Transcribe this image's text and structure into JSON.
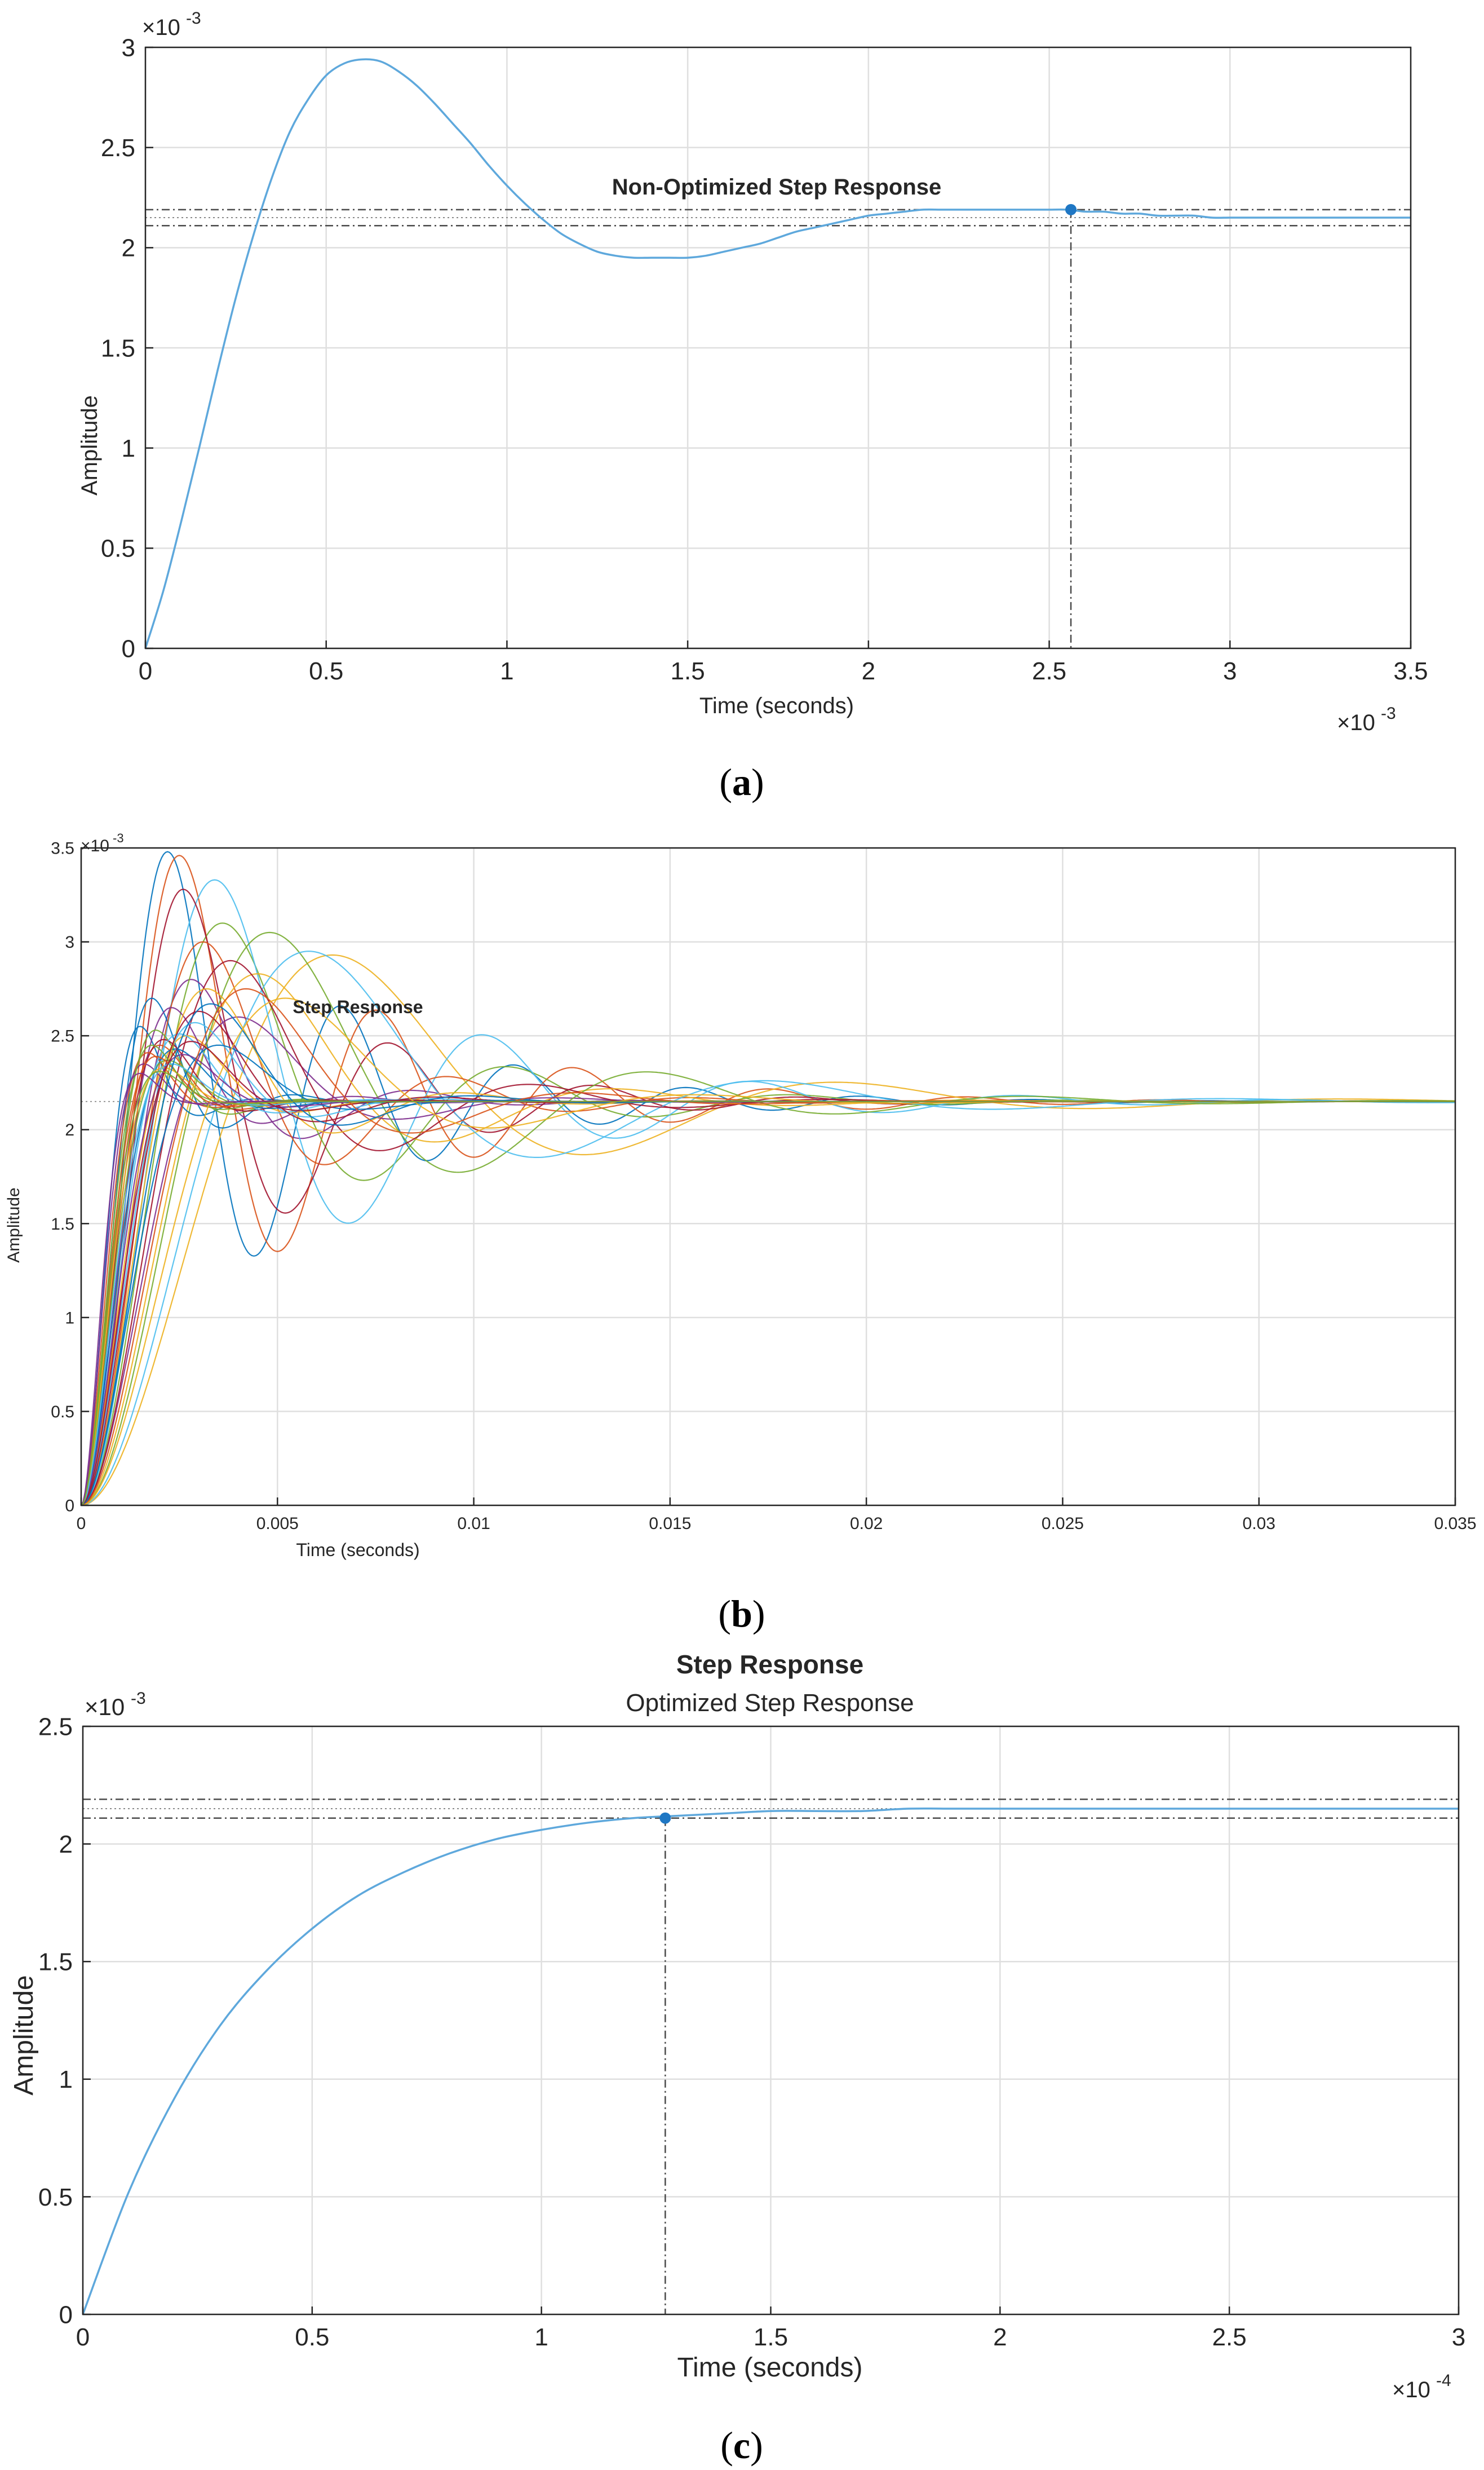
{
  "figure": {
    "panels": [
      {
        "caption": "(a)",
        "caption_letter": "a"
      },
      {
        "caption": "(b)",
        "caption_letter": "b"
      },
      {
        "caption": "(c)",
        "caption_letter": "c"
      }
    ]
  },
  "chart_data": [
    {
      "type": "line",
      "panel": "a",
      "title": "",
      "annotation": "Non-Optimized Step Response",
      "xlabel": "Time (seconds)",
      "ylabel": "Amplitude",
      "x_exponent_label": "×10^-3",
      "y_exponent_label": "×10^-3",
      "xlim": [
        0,
        0.0035
      ],
      "ylim": [
        0,
        0.003
      ],
      "xticks": [
        0,
        0.0005,
        0.001,
        0.0015,
        0.002,
        0.0025,
        0.003,
        0.0035
      ],
      "xtick_labels": [
        "0",
        "0.5",
        "1",
        "1.5",
        "2",
        "2.5",
        "3",
        "3.5"
      ],
      "yticks": [
        0,
        0.0005,
        0.001,
        0.0015,
        0.002,
        0.0025,
        0.003
      ],
      "ytick_labels": [
        "0",
        "0.5",
        "1",
        "1.5",
        "2",
        "2.5",
        "3"
      ],
      "grid": true,
      "series": [
        {
          "color": "#5ea8dc",
          "x": [
            0,
            5e-05,
            0.0001,
            0.00015,
            0.0002,
            0.00025,
            0.0003,
            0.00035,
            0.0004,
            0.00045,
            0.0005,
            0.00055,
            0.0006,
            0.00065,
            0.0007,
            0.00075,
            0.0008,
            0.00085,
            0.0009,
            0.00095,
            0.001,
            0.00105,
            0.0011,
            0.00115,
            0.0012,
            0.00125,
            0.0013,
            0.00135,
            0.0014,
            0.00145,
            0.0015,
            0.00155,
            0.0016,
            0.00165,
            0.0017,
            0.00175,
            0.0018,
            0.00185,
            0.0019,
            0.00195,
            0.002,
            0.00205,
            0.0021,
            0.00215,
            0.0022,
            0.00225,
            0.0023,
            0.00235,
            0.0024,
            0.00245,
            0.0025,
            0.00255,
            0.0026,
            0.00265,
            0.0027,
            0.00275,
            0.0028,
            0.00285,
            0.0029,
            0.00295,
            0.003,
            0.00305,
            0.0031,
            0.00315,
            0.0032,
            0.00325,
            0.0033,
            0.00335,
            0.0034,
            0.00345,
            0.0035
          ],
          "y": [
            0,
            0.00029,
            0.00064,
            0.00101,
            0.00139,
            0.00175,
            0.00207,
            0.00235,
            0.00258,
            0.00274,
            0.00286,
            0.00292,
            0.00294,
            0.00293,
            0.00288,
            0.00281,
            0.00272,
            0.00262,
            0.00252,
            0.00241,
            0.00231,
            0.00222,
            0.00214,
            0.00207,
            0.00202,
            0.00198,
            0.00196,
            0.00195,
            0.00195,
            0.00195,
            0.00195,
            0.00196,
            0.00198,
            0.002,
            0.00202,
            0.00205,
            0.00208,
            0.0021,
            0.00212,
            0.00214,
            0.00216,
            0.00217,
            0.00218,
            0.00219,
            0.00219,
            0.00219,
            0.00219,
            0.00219,
            0.00219,
            0.00219,
            0.00219,
            0.00219,
            0.00218,
            0.00218,
            0.00217,
            0.00217,
            0.00216,
            0.00216,
            0.00216,
            0.00215,
            0.00215,
            0.00215,
            0.00215,
            0.00215,
            0.00215,
            0.00215,
            0.00215,
            0.00215,
            0.00215,
            0.00215,
            0.00215
          ]
        }
      ],
      "reference_lines": {
        "upper_band": 0.00219,
        "lower_band": 0.00211,
        "final_value": 0.00215,
        "marker": {
          "x": 0.00256,
          "y": 0.00219
        }
      }
    },
    {
      "type": "line",
      "panel": "b",
      "title": "",
      "annotation": "Step Response",
      "xlabel": "Time (seconds)",
      "ylabel": "Amplitude",
      "y_exponent_label": "×10^-3",
      "xlim": [
        0,
        0.035
      ],
      "ylim": [
        0,
        0.0035
      ],
      "xticks": [
        0,
        0.005,
        0.01,
        0.015,
        0.02,
        0.025,
        0.03,
        0.035
      ],
      "xtick_labels": [
        "0",
        "0.005",
        "0.01",
        "0.015",
        "0.02",
        "0.025",
        "0.03",
        "0.035"
      ],
      "yticks": [
        0,
        0.0005,
        0.001,
        0.0015,
        0.002,
        0.0025,
        0.003,
        0.0035
      ],
      "ytick_labels": [
        "0",
        "0.5",
        "1",
        "1.5",
        "2",
        "2.5",
        "3",
        "3.5"
      ],
      "grid": true,
      "final_value": 0.00215,
      "series_model": "damped second-order step responses",
      "series_params": [
        {
          "color": "#0072bd",
          "tpeak": 0.0022,
          "overshoot": 0.00133,
          "decay": 2.9
        },
        {
          "color": "#d95319",
          "tpeak": 0.0025,
          "overshoot": 0.00131,
          "decay": 3.2
        },
        {
          "color": "#edb120",
          "tpeak": 0.0064,
          "overshoot": 0.00078,
          "decay": 0.8
        },
        {
          "color": "#7e2f8e",
          "tpeak": 0.0028,
          "overshoot": 0.00065,
          "decay": 1.6
        },
        {
          "color": "#77ac30",
          "tpeak": 0.0036,
          "overshoot": 0.00095,
          "decay": 1.4
        },
        {
          "color": "#4dbeee",
          "tpeak": 0.0034,
          "overshoot": 0.00118,
          "decay": 1.7
        },
        {
          "color": "#a2142f",
          "tpeak": 0.0026,
          "overshoot": 0.00113,
          "decay": 3.0
        },
        {
          "color": "#0072bd",
          "tpeak": 0.0018,
          "overshoot": 0.00055,
          "decay": 2.4
        },
        {
          "color": "#d95319",
          "tpeak": 0.0031,
          "overshoot": 0.00085,
          "decay": 1.9
        },
        {
          "color": "#edb120",
          "tpeak": 0.0045,
          "overshoot": 0.00068,
          "decay": 1.2
        },
        {
          "color": "#7e2f8e",
          "tpeak": 0.004,
          "overshoot": 0.00045,
          "decay": 1.5
        },
        {
          "color": "#77ac30",
          "tpeak": 0.0048,
          "overshoot": 0.0009,
          "decay": 1.1
        },
        {
          "color": "#4dbeee",
          "tpeak": 0.0058,
          "overshoot": 0.0008,
          "decay": 0.9
        },
        {
          "color": "#a2142f",
          "tpeak": 0.0038,
          "overshoot": 0.00075,
          "decay": 1.6
        },
        {
          "color": "#0072bd",
          "tpeak": 0.0015,
          "overshoot": 0.0004,
          "decay": 2.6
        },
        {
          "color": "#d95319",
          "tpeak": 0.002,
          "overshoot": 0.0003,
          "decay": 2.2
        },
        {
          "color": "#edb120",
          "tpeak": 0.0027,
          "overshoot": 0.00035,
          "decay": 2.0
        },
        {
          "color": "#7e2f8e",
          "tpeak": 0.0023,
          "overshoot": 0.0005,
          "decay": 2.1
        },
        {
          "color": "#77ac30",
          "tpeak": 0.0019,
          "overshoot": 0.00038,
          "decay": 2.8
        },
        {
          "color": "#4dbeee",
          "tpeak": 0.0029,
          "overshoot": 0.00042,
          "decay": 2.0
        },
        {
          "color": "#a2142f",
          "tpeak": 0.0021,
          "overshoot": 0.00033,
          "decay": 2.5
        },
        {
          "color": "#0072bd",
          "tpeak": 0.0024,
          "overshoot": 0.00028,
          "decay": 2.7
        },
        {
          "color": "#d95319",
          "tpeak": 0.0017,
          "overshoot": 0.00026,
          "decay": 3.0
        },
        {
          "color": "#edb120",
          "tpeak": 0.0032,
          "overshoot": 0.0006,
          "decay": 1.4
        },
        {
          "color": "#7e2f8e",
          "tpeak": 0.0016,
          "overshoot": 0.0002,
          "decay": 3.2
        },
        {
          "color": "#77ac30",
          "tpeak": 0.0022,
          "overshoot": 0.00022,
          "decay": 2.9
        },
        {
          "color": "#4dbeee",
          "tpeak": 0.0025,
          "overshoot": 0.00036,
          "decay": 2.3
        },
        {
          "color": "#a2142f",
          "tpeak": 0.003,
          "overshoot": 0.00048,
          "decay": 1.8
        },
        {
          "color": "#0072bd",
          "tpeak": 0.0035,
          "overshoot": 0.0003,
          "decay": 1.7
        },
        {
          "color": "#d95319",
          "tpeak": 0.0019,
          "overshoot": 0.00024,
          "decay": 2.6
        },
        {
          "color": "#edb120",
          "tpeak": 0.0021,
          "overshoot": 0.00018,
          "decay": 3.1
        },
        {
          "color": "#7e2f8e",
          "tpeak": 0.0026,
          "overshoot": 0.00025,
          "decay": 2.4
        },
        {
          "color": "#77ac30",
          "tpeak": 0.0018,
          "overshoot": 0.0003,
          "decay": 2.7
        },
        {
          "color": "#4dbeee",
          "tpeak": 0.0023,
          "overshoot": 0.0002,
          "decay": 2.8
        },
        {
          "color": "#a2142f",
          "tpeak": 0.0028,
          "overshoot": 0.00032,
          "decay": 2.2
        },
        {
          "color": "#0072bd",
          "tpeak": 0.0033,
          "overshoot": 0.00052,
          "decay": 1.5
        },
        {
          "color": "#d95319",
          "tpeak": 0.0042,
          "overshoot": 0.0006,
          "decay": 1.3
        },
        {
          "color": "#edb120",
          "tpeak": 0.0052,
          "overshoot": 0.00055,
          "decay": 1.0
        },
        {
          "color": "#7e2f8e",
          "tpeak": 0.0015,
          "overshoot": 0.00015,
          "decay": 3.4
        },
        {
          "color": "#77ac30",
          "tpeak": 0.002,
          "overshoot": 0.00016,
          "decay": 3.0
        }
      ]
    },
    {
      "type": "line",
      "panel": "c",
      "title": "Step Response",
      "subtitle": "Optimized Step Response",
      "xlabel": "Time (seconds)",
      "ylabel": "Amplitude",
      "x_exponent_label": "×10^-4",
      "y_exponent_label": "×10^-3",
      "xlim": [
        0,
        0.0003
      ],
      "ylim": [
        0,
        0.0025
      ],
      "xticks": [
        0,
        5e-05,
        0.0001,
        0.00015,
        0.0002,
        0.00025,
        0.0003
      ],
      "xtick_labels": [
        "0",
        "0.5",
        "1",
        "1.5",
        "2",
        "2.5",
        "3"
      ],
      "yticks": [
        0,
        0.0005,
        0.001,
        0.0015,
        0.002,
        0.0025
      ],
      "ytick_labels": [
        "0",
        "0.5",
        "1",
        "1.5",
        "2",
        "2.5"
      ],
      "grid": true,
      "series": [
        {
          "color": "#5ea8dc",
          "x": [
            0,
            1e-05,
            2e-05,
            3e-05,
            4e-05,
            5e-05,
            6e-05,
            7e-05,
            8e-05,
            9e-05,
            0.0001,
            0.00011,
            0.00012,
            0.00013,
            0.00014,
            0.00015,
            0.00016,
            0.00017,
            0.00018,
            0.00019,
            0.0002,
            0.00021,
            0.00022,
            0.00023,
            0.00024,
            0.00025,
            0.00026,
            0.00027,
            0.00028,
            0.00029,
            0.0003
          ],
          "y": [
            0,
            0.00052,
            0.00092,
            0.00123,
            0.00146,
            0.00164,
            0.00178,
            0.00188,
            0.00196,
            0.00202,
            0.00206,
            0.00209,
            0.00211,
            0.00212,
            0.00213,
            0.00214,
            0.00214,
            0.00214,
            0.00215,
            0.00215,
            0.00215,
            0.00215,
            0.00215,
            0.00215,
            0.00215,
            0.00215,
            0.00215,
            0.00215,
            0.00215,
            0.00215,
            0.00215
          ]
        }
      ],
      "reference_lines": {
        "upper_band": 0.00219,
        "lower_band": 0.00211,
        "final_value": 0.00215,
        "marker": {
          "x": 0.000127,
          "y": 0.00211
        }
      }
    }
  ]
}
